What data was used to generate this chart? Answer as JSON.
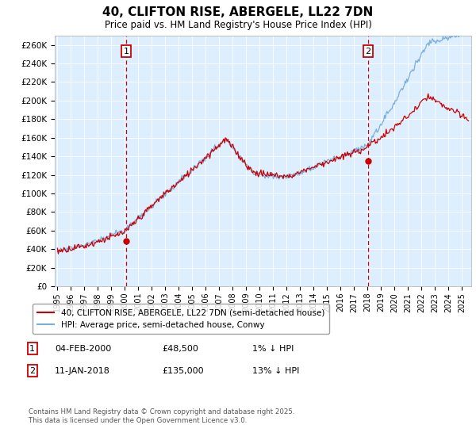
{
  "title": "40, CLIFTON RISE, ABERGELE, LL22 7DN",
  "subtitle": "Price paid vs. HM Land Registry's House Price Index (HPI)",
  "ylim": [
    0,
    270000
  ],
  "yticks": [
    0,
    20000,
    40000,
    60000,
    80000,
    100000,
    120000,
    140000,
    160000,
    180000,
    200000,
    220000,
    240000,
    260000
  ],
  "ytick_labels": [
    "£0",
    "£20K",
    "£40K",
    "£60K",
    "£80K",
    "£100K",
    "£120K",
    "£140K",
    "£160K",
    "£180K",
    "£200K",
    "£220K",
    "£240K",
    "£260K"
  ],
  "xlim_start": 1994.8,
  "xlim_end": 2025.7,
  "xticks": [
    1995,
    1996,
    1997,
    1998,
    1999,
    2000,
    2001,
    2002,
    2003,
    2004,
    2005,
    2006,
    2007,
    2008,
    2009,
    2010,
    2011,
    2012,
    2013,
    2014,
    2015,
    2016,
    2017,
    2018,
    2019,
    2020,
    2021,
    2022,
    2023,
    2024,
    2025
  ],
  "transaction1_year": 2000.09,
  "transaction1_price": 48500,
  "transaction2_year": 2018.04,
  "transaction2_price": 135000,
  "legend_line1": "40, CLIFTON RISE, ABERGELE, LL22 7DN (semi-detached house)",
  "legend_line2": "HPI: Average price, semi-detached house, Conwy",
  "footer": "Contains HM Land Registry data © Crown copyright and database right 2025.\nThis data is licensed under the Open Government Licence v3.0.",
  "line_color_red": "#cc0000",
  "line_color_blue": "#7aaddd",
  "background_color": "#ddeeff",
  "vline_color": "#cc0000",
  "box1_date": "04-FEB-2000",
  "box1_price": "£48,500",
  "box1_pct": "1% ↓ HPI",
  "box2_date": "11-JAN-2018",
  "box2_price": "£135,000",
  "box2_pct": "13% ↓ HPI"
}
